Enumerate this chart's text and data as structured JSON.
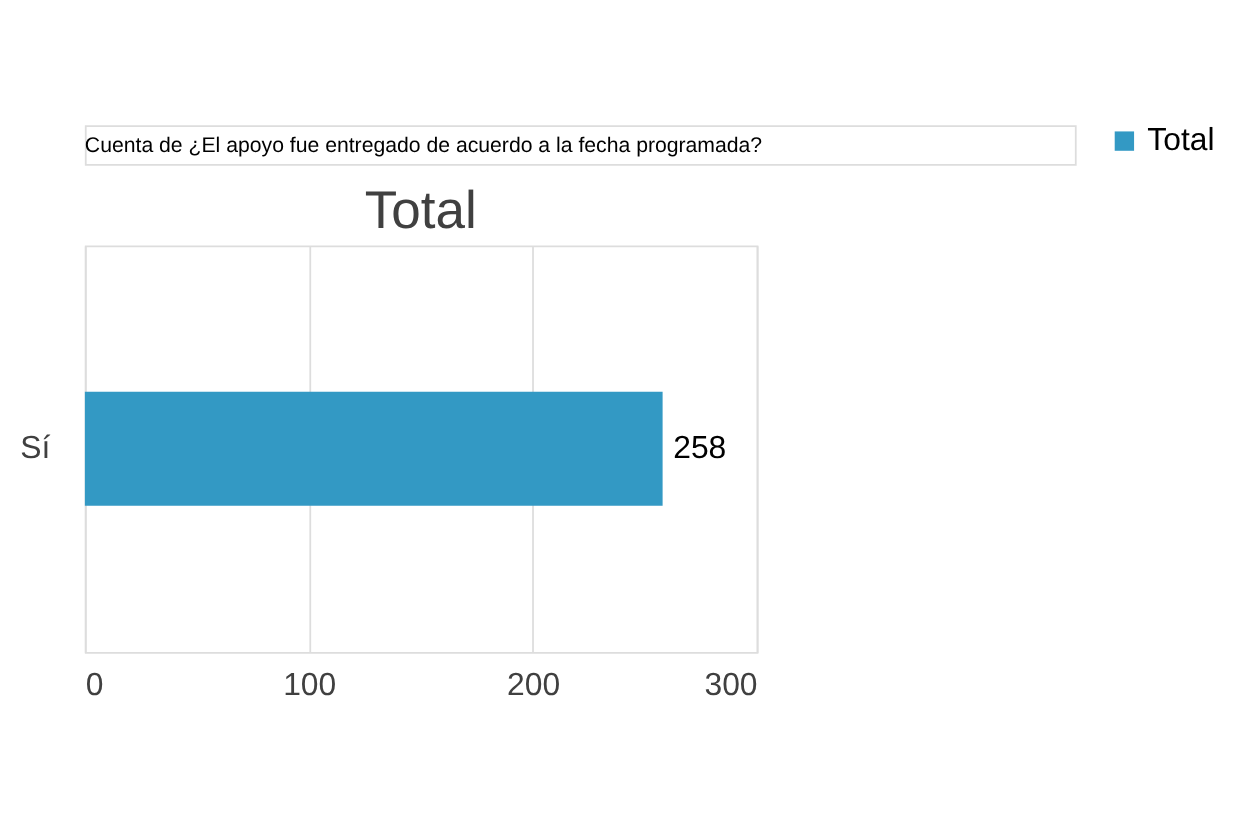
{
  "chart_data": {
    "type": "bar",
    "orientation": "horizontal",
    "title": "Total",
    "annotations": [
      "Cuenta de ¿El apoyo fue entregado de acuerdo a la fecha programada?"
    ],
    "categories": [
      "Sí"
    ],
    "series": [
      {
        "name": "Total",
        "color": "#3399c4",
        "values": [
          258
        ]
      }
    ],
    "xlim": [
      0,
      300
    ],
    "xticks": [
      0,
      100,
      200,
      300
    ],
    "grid": "x",
    "legend": "right",
    "data_labels": true
  }
}
